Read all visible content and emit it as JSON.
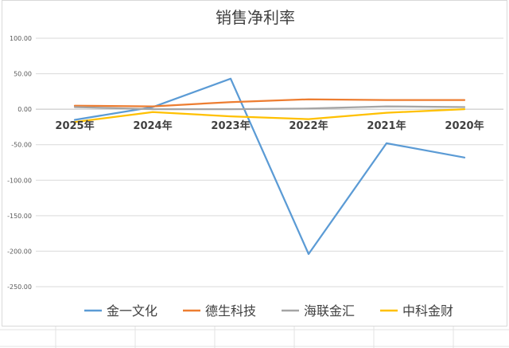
{
  "chart_data": {
    "type": "line",
    "title": "销售净利率",
    "xlabel": "",
    "ylabel": "",
    "categories": [
      "2025年",
      "2024年",
      "2023年",
      "2022年",
      "2021年",
      "2020年"
    ],
    "ylim": [
      -250,
      100
    ],
    "yticks": [
      "100.00",
      "50.00",
      "0.00",
      "-50.00",
      "-100.00",
      "-150.00",
      "-200.00",
      "-250.00"
    ],
    "grid": true,
    "legend_position": "bottom",
    "series": [
      {
        "name": "金一文化",
        "color": "#5B9BD5",
        "values": [
          -15,
          3,
          43,
          -204,
          -48,
          -68
        ]
      },
      {
        "name": "德生科技",
        "color": "#ED7D31",
        "values": [
          5,
          4,
          10,
          14,
          13,
          13
        ]
      },
      {
        "name": "海联金汇",
        "color": "#A5A5A5",
        "values": [
          3,
          0,
          0,
          1,
          4,
          3
        ]
      },
      {
        "name": "中科金财",
        "color": "#FFC000",
        "values": [
          -18,
          -4,
          -10,
          -14,
          -5,
          0
        ]
      }
    ]
  }
}
